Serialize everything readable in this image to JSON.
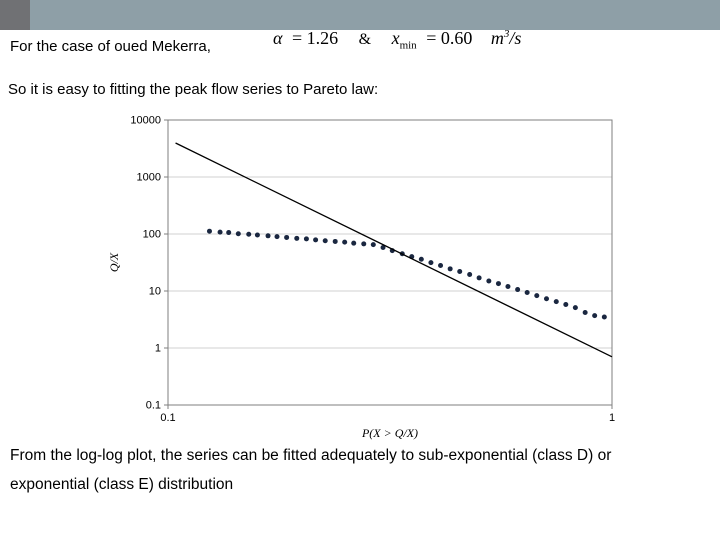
{
  "slide": {
    "intro": "For the case of oued Mekerra,",
    "statement": "So it is easy to fitting the peak flow series to Pareto law:",
    "conclusion_line1": "From the log-log plot, the series can be fitted adequately to sub-exponential (class D) or",
    "conclusion_line2": "exponential (class E) distribution"
  },
  "formula": {
    "alpha": "α",
    "alpha_eq": "= 1.26",
    "amp": "&",
    "x": "x",
    "x_sub": "min",
    "x_eq": "= 0.60",
    "unit_base": "m",
    "unit_exp": "3",
    "unit_slash": "/",
    "unit_denom": "s"
  },
  "colors": {
    "header_bar": "#8e9fa7",
    "header_accent": "#707174",
    "background": "#ffffff",
    "text": "#000000",
    "scatter_point": "#1a2740",
    "fit_line": "#000000",
    "grid_line": "#c2c2c2",
    "plot_border": "#7f7f7f"
  },
  "chart_data": {
    "type": "scatter",
    "title": "",
    "xlabel": "P(X > Q/X)",
    "ylabel": "Q/X",
    "x_scale": "log",
    "y_scale": "log",
    "xlim": [
      0.1,
      1
    ],
    "ylim": [
      0.1,
      10000
    ],
    "x_ticks": [
      "0.1",
      "1"
    ],
    "y_ticks": [
      "10000",
      "1000",
      "100",
      "10",
      "1",
      "0.1"
    ],
    "grid": "horizontal-major",
    "legend": "none",
    "series": [
      {
        "name": "peak-flow-series",
        "type": "scatter",
        "x": [
          0.124,
          0.131,
          0.137,
          0.144,
          0.152,
          0.159,
          0.168,
          0.176,
          0.185,
          0.195,
          0.205,
          0.215,
          0.226,
          0.238,
          0.25,
          0.262,
          0.276,
          0.29,
          0.305,
          0.32,
          0.337,
          0.354,
          0.372,
          0.391,
          0.411,
          0.432,
          0.454,
          0.478,
          0.502,
          0.528,
          0.555,
          0.583,
          0.613,
          0.644,
          0.677,
          0.712,
          0.749,
          0.787,
          0.827,
          0.87,
          0.914,
          0.961
        ],
        "y": [
          112,
          108,
          106,
          101,
          99,
          96,
          93,
          90,
          87,
          84,
          82,
          79,
          76,
          74,
          72,
          69,
          67,
          65,
          58,
          51,
          45,
          40,
          36,
          31.5,
          28,
          24.5,
          22,
          19.5,
          17,
          15,
          13.5,
          12,
          10.6,
          9.4,
          8.3,
          7.3,
          6.5,
          5.8,
          5.1,
          4.2,
          3.7,
          3.5
        ]
      },
      {
        "name": "pareto-fit-line",
        "type": "line",
        "x": [
          0.104,
          1.0
        ],
        "y": [
          3950,
          0.7
        ]
      }
    ]
  }
}
